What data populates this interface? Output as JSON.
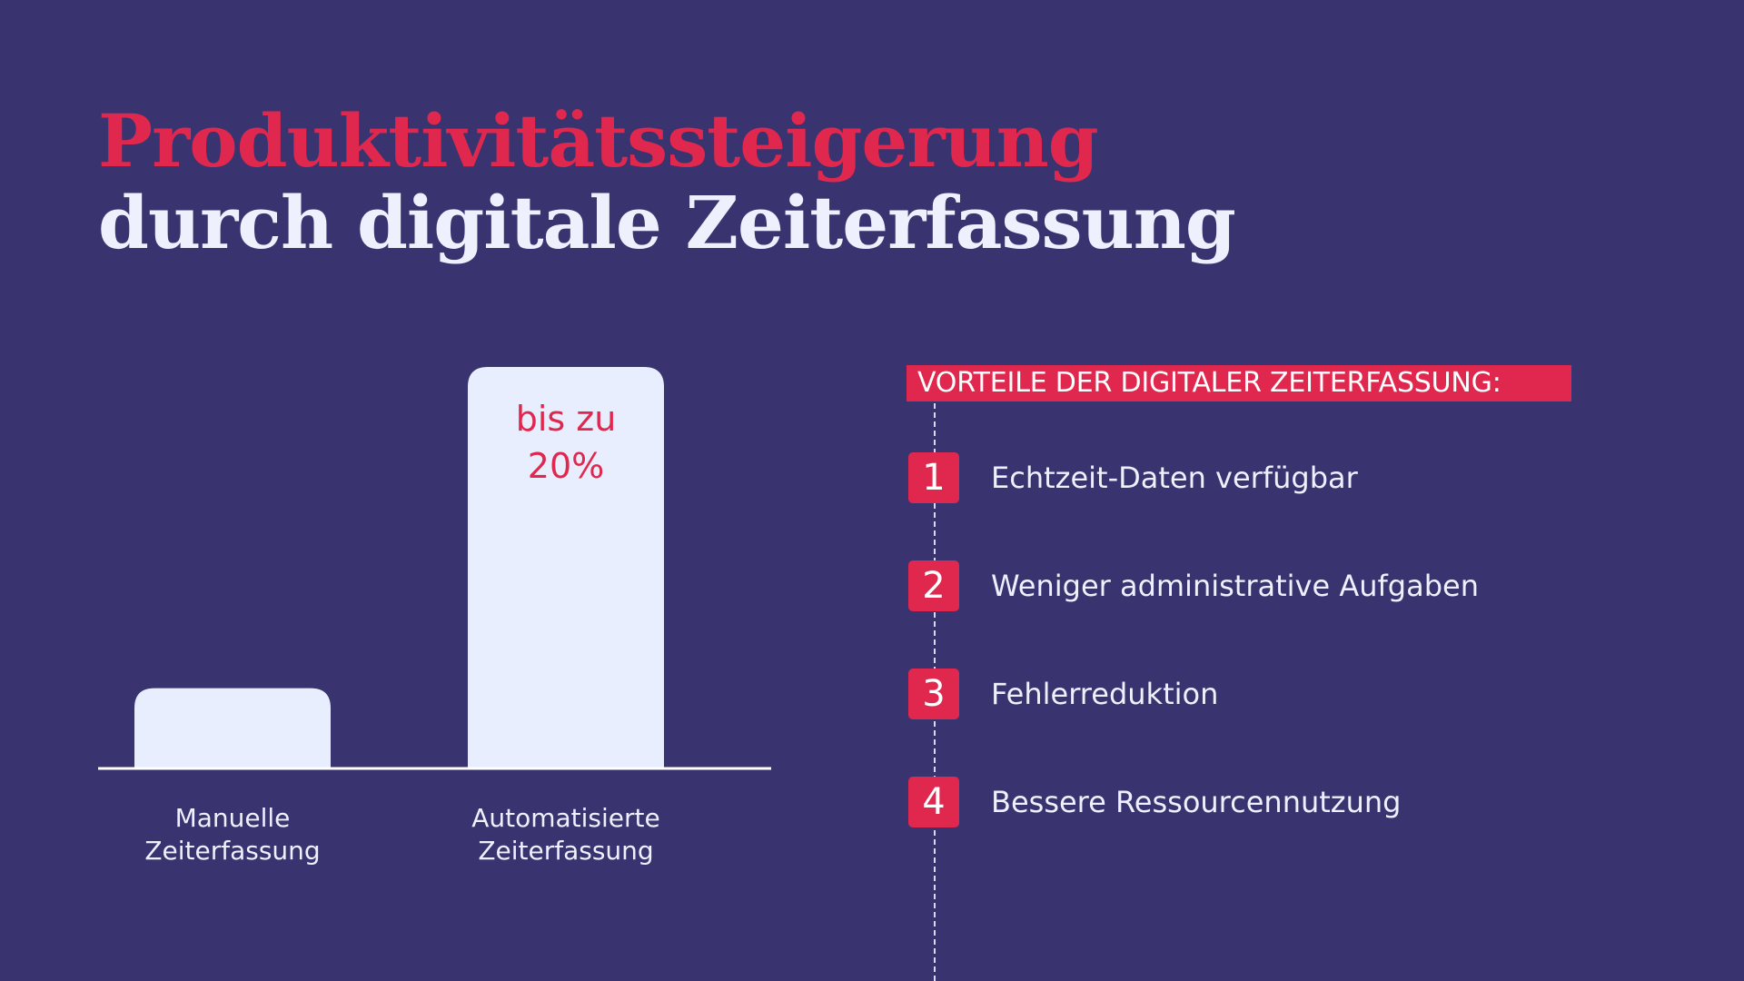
{
  "header": {
    "title_line1": "Produktivitätssteigerung",
    "title_line2": "durch digitale Zeiterfassung"
  },
  "colors": {
    "background": "#39336f",
    "accent": "#e0284f",
    "bar": "#e8eefd",
    "text_light": "#eef1fd"
  },
  "chart_data": {
    "type": "bar",
    "categories": [
      [
        "Manuelle",
        "Zeiterfassung"
      ],
      [
        "Automatisierte",
        "Zeiterfassung"
      ]
    ],
    "values": [
      1,
      5
    ],
    "value_labels": [
      "",
      "bis zu|20%"
    ],
    "xlabel": "",
    "ylabel": "",
    "ylim": [
      0,
      5
    ],
    "grid": false,
    "legend": "none"
  },
  "benefits": {
    "heading": "VORTEILE DER DIGITALER ZEITERFASSUNG:",
    "items": [
      {
        "number": "1",
        "label": "Echtzeit-Daten verfügbar"
      },
      {
        "number": "2",
        "label": "Weniger administrative Aufgaben"
      },
      {
        "number": "3",
        "label": "Fehlerreduktion"
      },
      {
        "number": "4",
        "label": "Bessere Ressourcennutzung"
      }
    ]
  }
}
